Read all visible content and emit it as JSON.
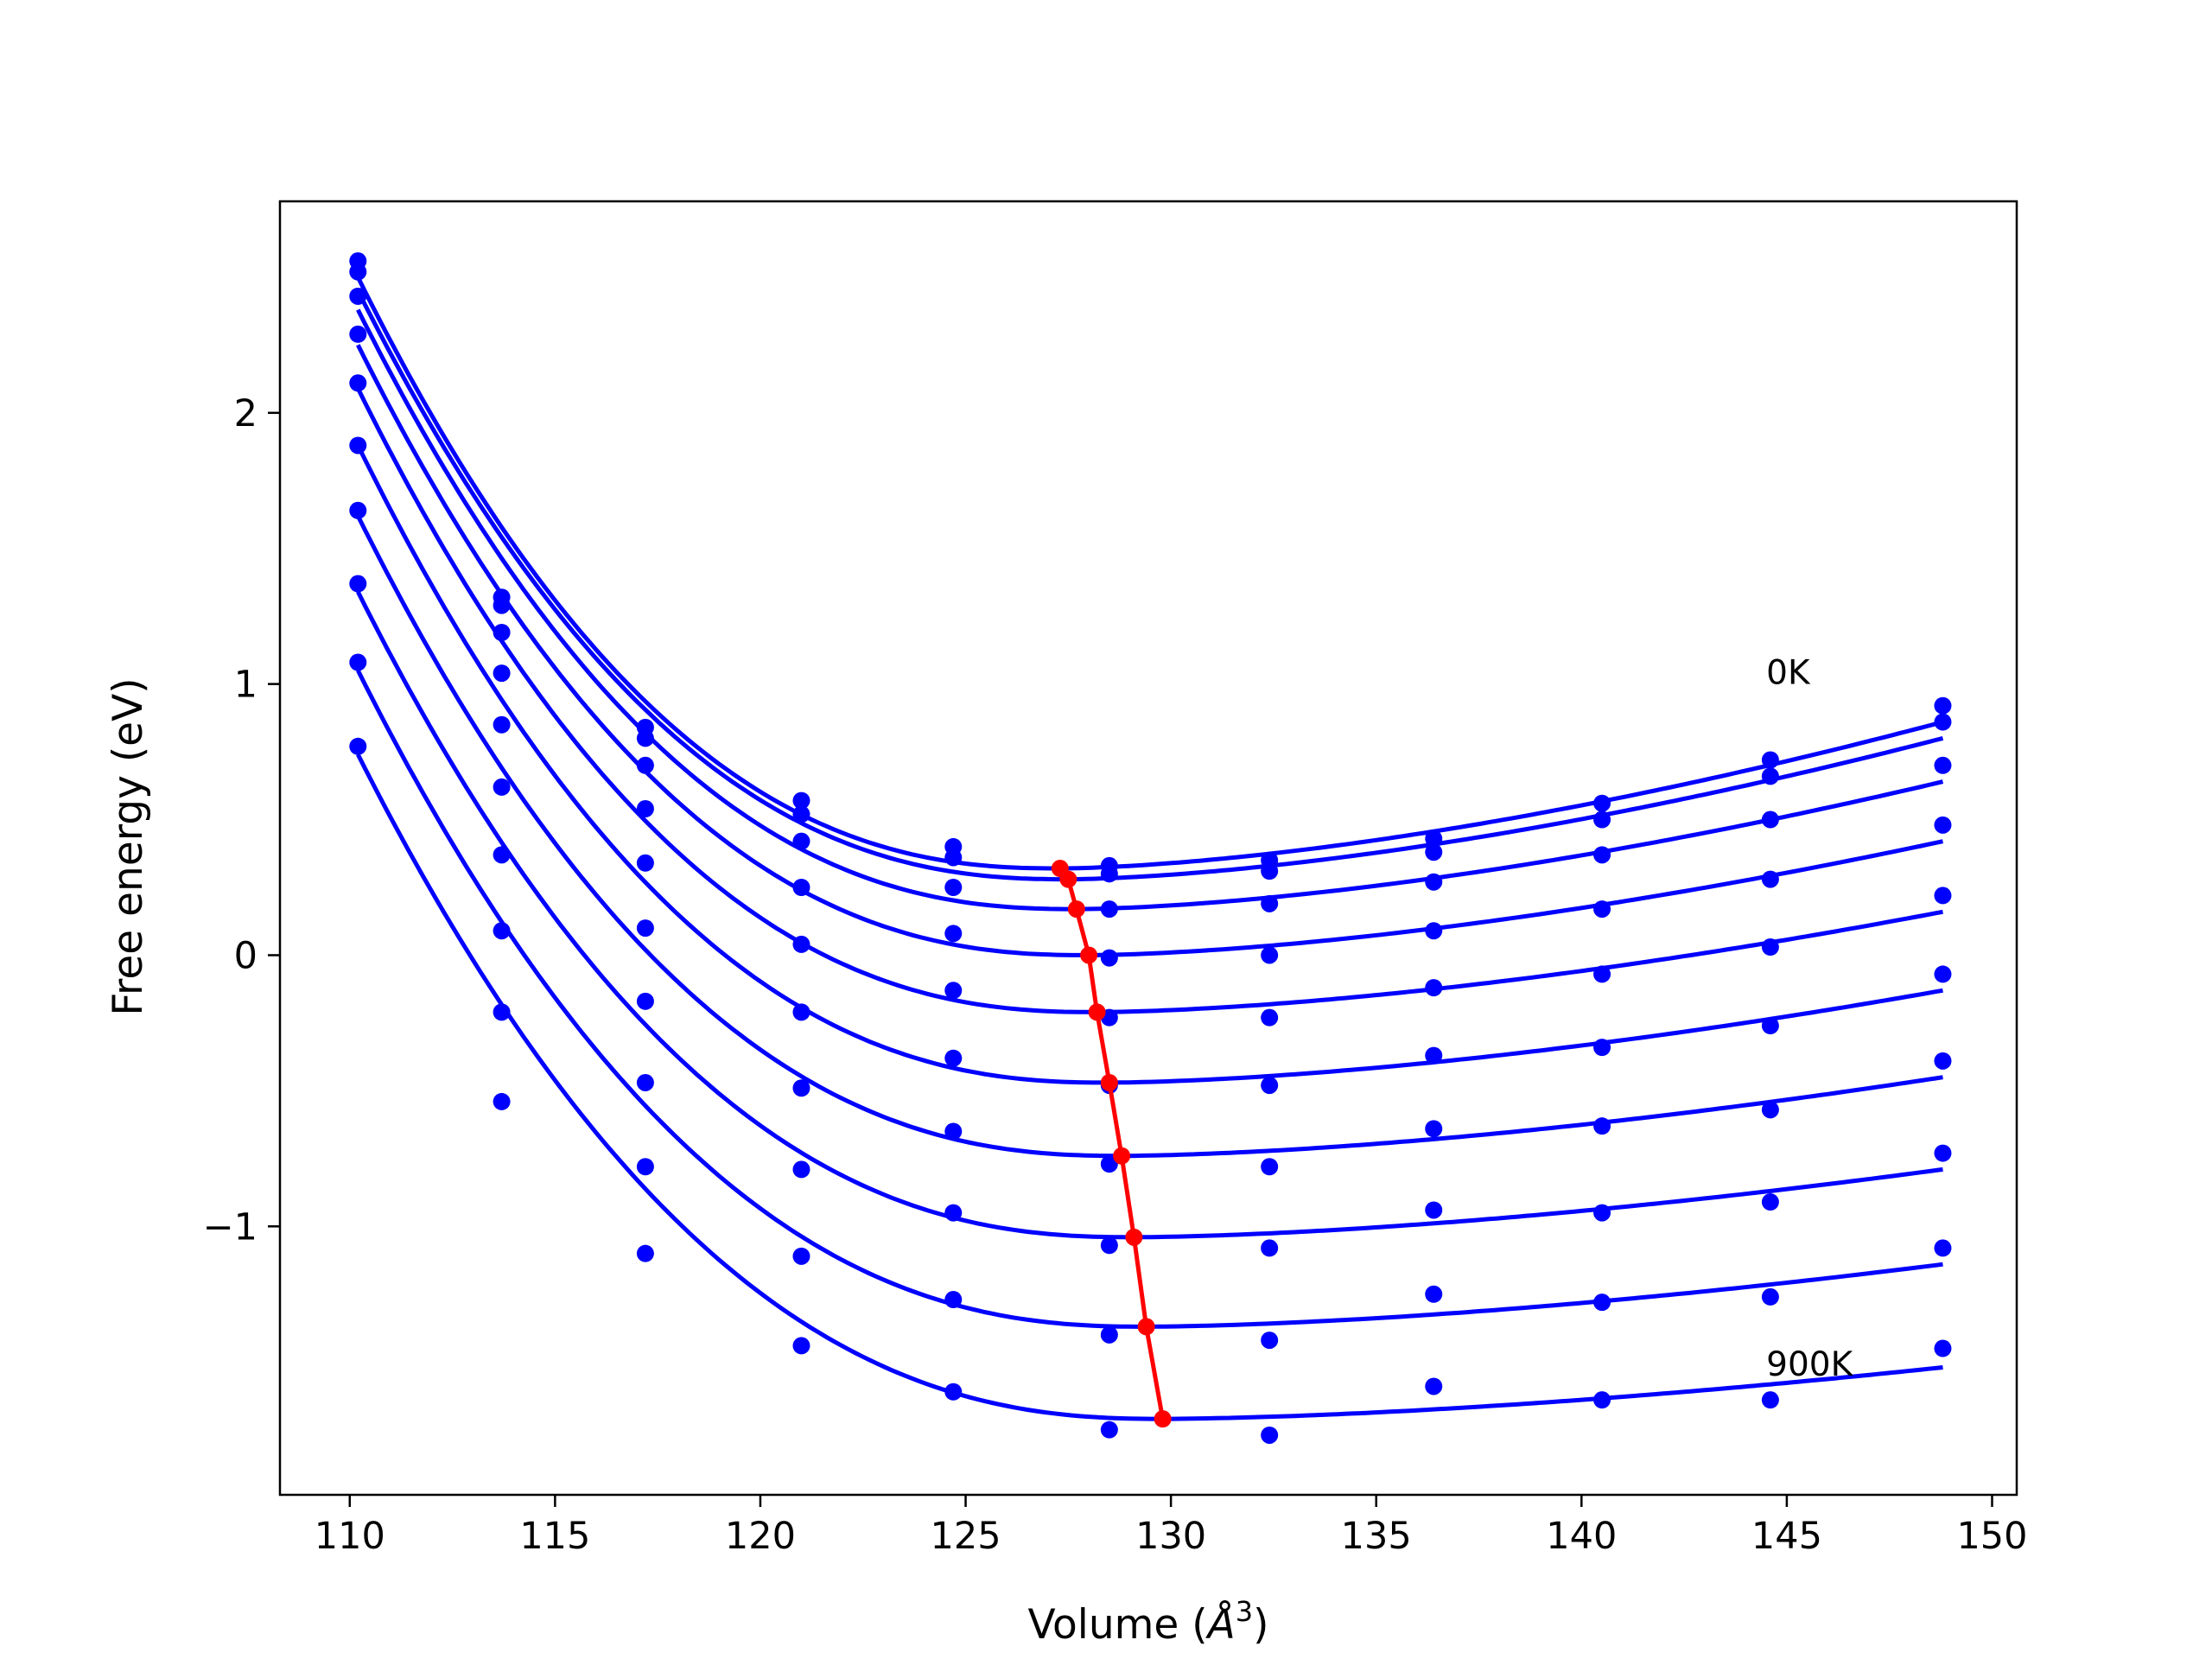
{
  "chart_data": {
    "type": "line",
    "title": "",
    "xlabel_main": "Volume (",
    "xlabel_symbol": "Å",
    "xlabel_exp": "3",
    "xlabel_close": ")",
    "ylabel": "Free energy (eV)",
    "xlim": [
      108.3,
      150.6
    ],
    "ylim": [
      -1.99,
      2.78
    ],
    "xticks": [
      110,
      115,
      120,
      125,
      130,
      135,
      140,
      145,
      150
    ],
    "xtick_labels": [
      "110",
      "115",
      "120",
      "125",
      "130",
      "135",
      "140",
      "145",
      "150"
    ],
    "yticks": [
      -1,
      0,
      1,
      2
    ],
    "ytick_labels": [
      "−1",
      "0",
      "1",
      "2"
    ],
    "grid": false,
    "legend": "none",
    "annotations": [
      {
        "text": "0K",
        "x": 144.5,
        "y": 1.0
      },
      {
        "text": "900K",
        "x": 144.5,
        "y": -1.55
      }
    ],
    "colors": {
      "fit": "#0000ff",
      "points": "#0000ff",
      "minimum_path": "#ff0000"
    },
    "volumes": [
      110.2,
      113.7,
      117.2,
      121.0,
      124.7,
      128.5,
      132.4,
      136.4,
      140.5,
      144.6,
      148.8
    ],
    "series": [
      {
        "points": [
          2.56,
          1.32,
          0.84,
          0.57,
          0.4,
          0.33,
          0.35,
          0.43,
          0.56,
          0.72,
          0.92
        ],
        "fit": {
          "v0": 127.3,
          "emin": 0.32,
          "left_x": 110.2,
          "left_y": 2.5,
          "right_x": 148.8,
          "right_y": 0.86
        }
      },
      {
        "points": [
          2.52,
          1.29,
          0.8,
          0.52,
          0.36,
          0.3,
          0.31,
          0.38,
          0.5,
          0.66,
          0.86
        ],
        "fit": {
          "v0": 127.5,
          "emin": 0.28,
          "left_x": 110.2,
          "left_y": 2.45,
          "right_x": 148.8,
          "right_y": 0.8
        }
      },
      {
        "points": [
          2.43,
          1.19,
          0.7,
          0.42,
          0.25,
          0.17,
          0.19,
          0.27,
          0.37,
          0.5,
          0.7
        ],
        "fit": {
          "v0": 127.7,
          "emin": 0.17,
          "left_x": 110.2,
          "left_y": 2.38,
          "right_x": 148.8,
          "right_y": 0.64
        }
      },
      {
        "points": [
          2.29,
          1.04,
          0.54,
          0.25,
          0.08,
          -0.01,
          0.0,
          0.09,
          0.17,
          0.28,
          0.48
        ],
        "fit": {
          "v0": 128.0,
          "emin": 0.0,
          "left_x": 110.2,
          "left_y": 2.25,
          "right_x": 148.8,
          "right_y": 0.42
        }
      },
      {
        "points": [
          2.11,
          0.85,
          0.34,
          0.04,
          -0.13,
          -0.23,
          -0.23,
          -0.12,
          -0.07,
          0.03,
          0.22
        ],
        "fit": {
          "v0": 128.2,
          "emin": -0.21,
          "left_x": 110.2,
          "left_y": 2.09,
          "right_x": 148.8,
          "right_y": 0.16
        }
      },
      {
        "points": [
          1.88,
          0.62,
          0.1,
          -0.21,
          -0.38,
          -0.48,
          -0.48,
          -0.37,
          -0.34,
          -0.26,
          -0.07
        ],
        "fit": {
          "v0": 128.5,
          "emin": -0.47,
          "left_x": 110.2,
          "left_y": 1.88,
          "right_x": 148.8,
          "right_y": -0.13
        }
      },
      {
        "points": [
          1.64,
          0.37,
          -0.17,
          -0.49,
          -0.65,
          -0.77,
          -0.78,
          -0.64,
          -0.63,
          -0.57,
          -0.39
        ],
        "fit": {
          "v0": 128.8,
          "emin": -0.74,
          "left_x": 110.2,
          "left_y": 1.62,
          "right_x": 148.8,
          "right_y": -0.45
        }
      },
      {
        "points": [
          1.37,
          0.09,
          -0.47,
          -0.79,
          -0.95,
          -1.07,
          -1.08,
          -0.94,
          -0.95,
          -0.91,
          -0.73
        ],
        "fit": {
          "v0": 129.1,
          "emin": -1.04,
          "left_x": 110.2,
          "left_y": 1.34,
          "right_x": 148.8,
          "right_y": -0.79
        }
      },
      {
        "points": [
          1.08,
          -0.21,
          -0.78,
          -1.11,
          -1.27,
          -1.4,
          -1.42,
          -1.25,
          -1.28,
          -1.26,
          -1.08
        ],
        "fit": {
          "v0": 129.4,
          "emin": -1.37,
          "left_x": 110.2,
          "left_y": 1.05,
          "right_x": 148.8,
          "right_y": -1.14
        }
      },
      {
        "points": [
          0.77,
          -0.54,
          -1.1,
          -1.44,
          -1.61,
          -1.75,
          -1.77,
          -1.59,
          -1.64,
          -1.64,
          -1.45
        ],
        "fit": {
          "v0": 129.8,
          "emin": -1.71,
          "left_x": 110.2,
          "left_y": 0.74,
          "right_x": 148.8,
          "right_y": -1.52
        }
      }
    ],
    "minimum_path": {
      "x": [
        127.3,
        127.5,
        127.7,
        128.0,
        128.2,
        128.5,
        128.8,
        129.1,
        129.4,
        129.8
      ],
      "y": [
        0.32,
        0.28,
        0.17,
        0.0,
        -0.21,
        -0.47,
        -0.74,
        -1.04,
        -1.37,
        -1.71
      ]
    }
  }
}
